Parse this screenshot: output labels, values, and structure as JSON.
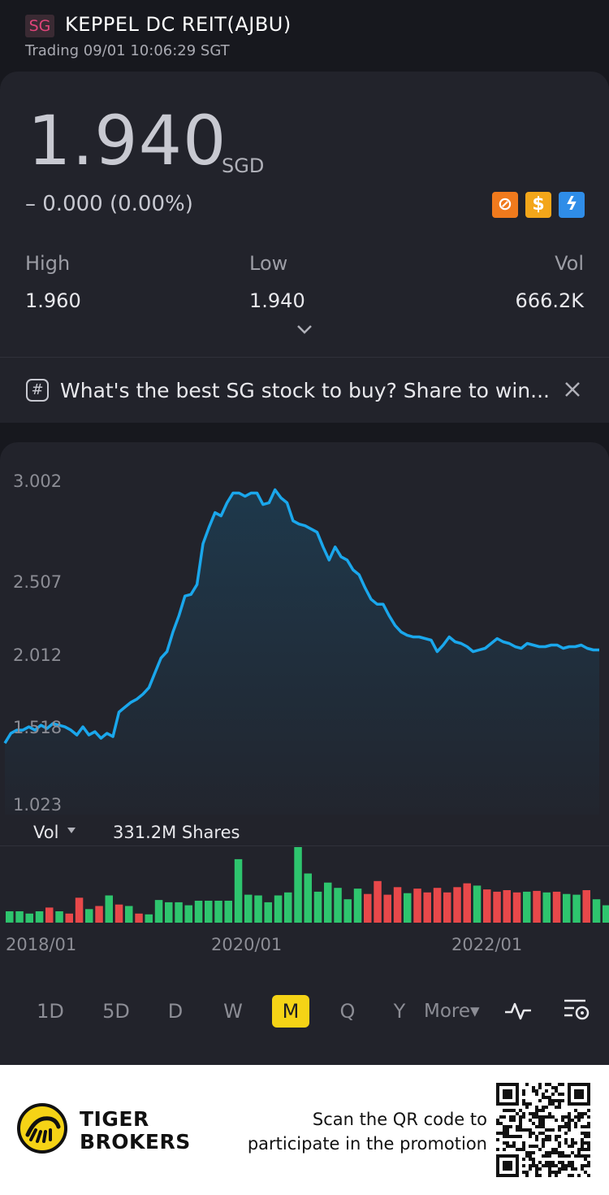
{
  "header": {
    "market": "SG",
    "title": "KEPPEL DC REIT(AJBU)",
    "status": "Trading 09/01 10:06:29 SGT"
  },
  "quote": {
    "price": "1.940",
    "currency": "SGD",
    "change": "– 0.000 (0.00%)",
    "badges": [
      "no-margin-icon",
      "dividend-icon",
      "level1-data-icon"
    ],
    "high_label": "High",
    "high_value": "1.960",
    "low_label": "Low",
    "low_value": "1.940",
    "vol_label": "Vol",
    "vol_value": "666.2K"
  },
  "promo": {
    "text": "What's the best SG stock to buy? Share to win..."
  },
  "chart_data": {
    "type": "area",
    "y_ticks": [
      "3.002",
      "2.507",
      "2.012",
      "1.518",
      "1.023"
    ],
    "ylim": [
      1.023,
      3.002
    ],
    "x_ticks": [
      "2018/01",
      "2020/01",
      "2022/01"
    ],
    "line_color": "#1aa7ec",
    "prices": [
      1.4,
      1.46,
      1.48,
      1.48,
      1.5,
      1.48,
      1.51,
      1.49,
      1.52,
      1.51,
      1.5,
      1.48,
      1.45,
      1.5,
      1.45,
      1.47,
      1.43,
      1.46,
      1.44,
      1.59,
      1.62,
      1.65,
      1.67,
      1.7,
      1.74,
      1.83,
      1.92,
      1.96,
      2.08,
      2.18,
      2.3,
      2.31,
      2.37,
      2.62,
      2.72,
      2.81,
      2.79,
      2.87,
      2.93,
      2.93,
      2.91,
      2.93,
      2.93,
      2.86,
      2.87,
      2.95,
      2.9,
      2.87,
      2.76,
      2.74,
      2.73,
      2.71,
      2.69,
      2.6,
      2.52,
      2.6,
      2.54,
      2.52,
      2.46,
      2.43,
      2.35,
      2.28,
      2.25,
      2.25,
      2.18,
      2.12,
      2.08,
      2.06,
      2.05,
      2.05,
      2.04,
      2.03,
      1.96,
      2.0,
      2.05,
      2.02,
      2.01,
      1.99,
      1.96,
      1.97,
      1.98,
      2.01,
      2.04,
      2.02,
      2.01,
      1.99,
      1.98,
      2.01,
      2.0,
      1.99,
      1.99,
      2.0,
      2.0,
      1.98,
      1.99,
      1.99,
      2.0,
      1.98,
      1.97,
      1.97
    ],
    "volume": {
      "selector_label": "Vol",
      "total_label": "331.2M Shares",
      "up_color": "#2ec56e",
      "down_color": "#e8484a",
      "bars": [
        {
          "v": 0.15,
          "d": "up"
        },
        {
          "v": 0.15,
          "d": "up"
        },
        {
          "v": 0.12,
          "d": "up"
        },
        {
          "v": 0.15,
          "d": "up"
        },
        {
          "v": 0.2,
          "d": "down"
        },
        {
          "v": 0.15,
          "d": "up"
        },
        {
          "v": 0.12,
          "d": "down"
        },
        {
          "v": 0.33,
          "d": "down"
        },
        {
          "v": 0.18,
          "d": "up"
        },
        {
          "v": 0.22,
          "d": "down"
        },
        {
          "v": 0.36,
          "d": "up"
        },
        {
          "v": 0.24,
          "d": "down"
        },
        {
          "v": 0.22,
          "d": "up"
        },
        {
          "v": 0.12,
          "d": "down"
        },
        {
          "v": 0.11,
          "d": "up"
        },
        {
          "v": 0.3,
          "d": "up"
        },
        {
          "v": 0.27,
          "d": "up"
        },
        {
          "v": 0.27,
          "d": "up"
        },
        {
          "v": 0.23,
          "d": "up"
        },
        {
          "v": 0.29,
          "d": "up"
        },
        {
          "v": 0.29,
          "d": "up"
        },
        {
          "v": 0.29,
          "d": "up"
        },
        {
          "v": 0.29,
          "d": "up"
        },
        {
          "v": 0.84,
          "d": "up"
        },
        {
          "v": 0.37,
          "d": "up"
        },
        {
          "v": 0.36,
          "d": "up"
        },
        {
          "v": 0.27,
          "d": "up"
        },
        {
          "v": 0.36,
          "d": "up"
        },
        {
          "v": 0.4,
          "d": "up"
        },
        {
          "v": 1.0,
          "d": "up"
        },
        {
          "v": 0.65,
          "d": "up"
        },
        {
          "v": 0.41,
          "d": "up"
        },
        {
          "v": 0.53,
          "d": "up"
        },
        {
          "v": 0.46,
          "d": "up"
        },
        {
          "v": 0.31,
          "d": "up"
        },
        {
          "v": 0.45,
          "d": "up"
        },
        {
          "v": 0.38,
          "d": "down"
        },
        {
          "v": 0.55,
          "d": "down"
        },
        {
          "v": 0.37,
          "d": "down"
        },
        {
          "v": 0.47,
          "d": "down"
        },
        {
          "v": 0.39,
          "d": "up"
        },
        {
          "v": 0.45,
          "d": "down"
        },
        {
          "v": 0.4,
          "d": "down"
        },
        {
          "v": 0.46,
          "d": "down"
        },
        {
          "v": 0.4,
          "d": "down"
        },
        {
          "v": 0.47,
          "d": "down"
        },
        {
          "v": 0.52,
          "d": "down"
        },
        {
          "v": 0.49,
          "d": "up"
        },
        {
          "v": 0.44,
          "d": "down"
        },
        {
          "v": 0.41,
          "d": "down"
        },
        {
          "v": 0.43,
          "d": "down"
        },
        {
          "v": 0.4,
          "d": "down"
        },
        {
          "v": 0.41,
          "d": "up"
        },
        {
          "v": 0.42,
          "d": "down"
        },
        {
          "v": 0.4,
          "d": "up"
        },
        {
          "v": 0.41,
          "d": "down"
        },
        {
          "v": 0.38,
          "d": "up"
        },
        {
          "v": 0.37,
          "d": "up"
        },
        {
          "v": 0.43,
          "d": "down"
        },
        {
          "v": 0.31,
          "d": "up"
        },
        {
          "v": 0.23,
          "d": "up"
        },
        {
          "v": 0.19,
          "d": "up"
        }
      ]
    }
  },
  "periods": [
    {
      "label": "1D",
      "active": false
    },
    {
      "label": "5D",
      "active": false
    },
    {
      "label": "D",
      "active": false
    },
    {
      "label": "W",
      "active": false
    },
    {
      "label": "M",
      "active": true
    },
    {
      "label": "Q",
      "active": false
    },
    {
      "label": "Y",
      "active": false
    }
  ],
  "more_label": "More▾",
  "footer": {
    "brand_line1": "TIGER",
    "brand_line2": "BROKERS",
    "scan_line1": "Scan the QR code to",
    "scan_line2": "participate in the promotion"
  }
}
